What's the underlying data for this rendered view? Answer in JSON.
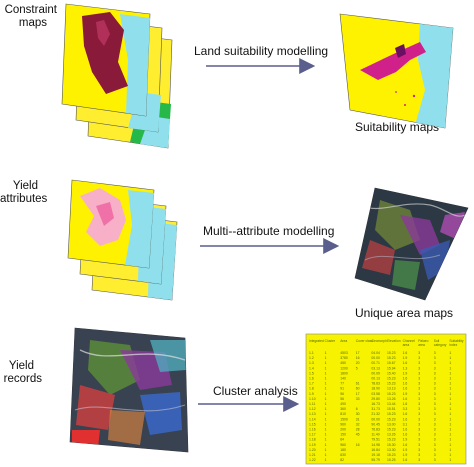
{
  "rows": [
    {
      "input_label_lines": [
        "Constraint",
        "maps"
      ],
      "process_label": "Land suitability modelling",
      "output_label": "Suitability maps"
    },
    {
      "input_label_lines": [
        "Yield",
        "attributes"
      ],
      "process_label": "Multi--attribute modelling",
      "output_label": "Unique area maps"
    },
    {
      "input_label_lines": [
        "Yield",
        "records"
      ],
      "process_label": "Cluster analysis",
      "output_label": ""
    }
  ],
  "table": {
    "headers": [
      "Integrated",
      "Cluster",
      "Area",
      "Cover class",
      "Geomorph",
      "Elevation",
      "Channel\narea",
      "Palaeo\narea",
      "Soil\ncategory",
      "Suitability\nindex"
    ],
    "rows": [
      [
        "1.1",
        "1",
        "4503",
        "17",
        "04.04",
        "15.23",
        "1.6",
        "3",
        "3",
        "1"
      ],
      [
        "1.2",
        "1",
        "3780",
        "16",
        "00.00",
        "15.23",
        "1.9",
        "3",
        "3",
        "1"
      ],
      [
        "1.3",
        "1",
        "450",
        "20",
        "00.71",
        "15.67",
        "1.6",
        "3",
        "3",
        "1"
      ],
      [
        "1.4",
        "1",
        "1200",
        "5",
        "03.13",
        "15.94",
        "1.3",
        "3",
        "3",
        "1"
      ],
      [
        "1.5",
        "1",
        "1800",
        "",
        "00.09",
        "15.40",
        "1.9",
        "3",
        "3",
        "1"
      ],
      [
        "1.6",
        "1",
        "140",
        "",
        "00.13",
        "15.23",
        "1.6",
        "3",
        "3",
        "1"
      ],
      [
        "1.7",
        "1",
        "77",
        "61",
        "78.63",
        "15.23",
        "1.6",
        "3",
        "3",
        "1"
      ],
      [
        "1.8",
        "1",
        "91",
        "60",
        "18.90",
        "13.13",
        "1.6",
        "3",
        "3",
        "1"
      ],
      [
        "1.9",
        "1",
        "96",
        "17",
        "03.58",
        "15.23",
        "1.9",
        "3",
        "3",
        "1"
      ],
      [
        "1.10",
        "1",
        "56",
        "33",
        "29.80",
        "13.26",
        "1.6",
        "3",
        "3",
        "1"
      ],
      [
        "1.11",
        "1",
        "490",
        "",
        "16.73",
        "13.44",
        "1.6",
        "3",
        "3",
        "1"
      ],
      [
        "1.12",
        "1",
        "360",
        "6",
        "31.73",
        "15.51",
        "3.3",
        "3",
        "3",
        "1"
      ],
      [
        "1.13",
        "1",
        "810",
        "30",
        "21.32",
        "15.23",
        "1.6",
        "3",
        "3",
        "1"
      ],
      [
        "1.14",
        "1",
        "1500",
        "31",
        "00.00",
        "15.23",
        "1.6",
        "3",
        "3",
        "1"
      ],
      [
        "1.15",
        "1",
        "960",
        "32",
        "90.45",
        "13.00",
        "3.1",
        "3",
        "3",
        "1"
      ],
      [
        "1.16",
        "1",
        "200",
        "28",
        "76.83",
        "15.23",
        "1.6",
        "3",
        "3",
        "1"
      ],
      [
        "1.17",
        "1",
        "150",
        "45",
        "11.40",
        "13.26",
        "1.6",
        "3",
        "3",
        "1"
      ],
      [
        "1.18",
        "1",
        "64",
        "",
        "79.51",
        "15.23",
        "1.9",
        "3",
        "3",
        "1"
      ],
      [
        "1.19",
        "1",
        "960",
        "16",
        "14.98",
        "15.30",
        "1.6",
        "3",
        "3",
        "1"
      ],
      [
        "1.20",
        "1",
        "180",
        "",
        "16.84",
        "13.30",
        "1.9",
        "3",
        "3",
        "1"
      ],
      [
        "1.21",
        "1",
        "630",
        "",
        "19.18",
        "15.23",
        "1.9",
        "3",
        "3",
        "1"
      ],
      [
        "1.22",
        "1",
        "82",
        "",
        "55.79",
        "15.25",
        "1.6",
        "3",
        "3",
        "1"
      ]
    ]
  },
  "colors": {
    "water": "#8fe0ec",
    "land": "#fff200",
    "constraint": "#8a1a3a",
    "suitable": "#d0208a",
    "arrow": "#5a5e8c",
    "table_bg": "#f6f200",
    "table_text": "#556b00"
  }
}
